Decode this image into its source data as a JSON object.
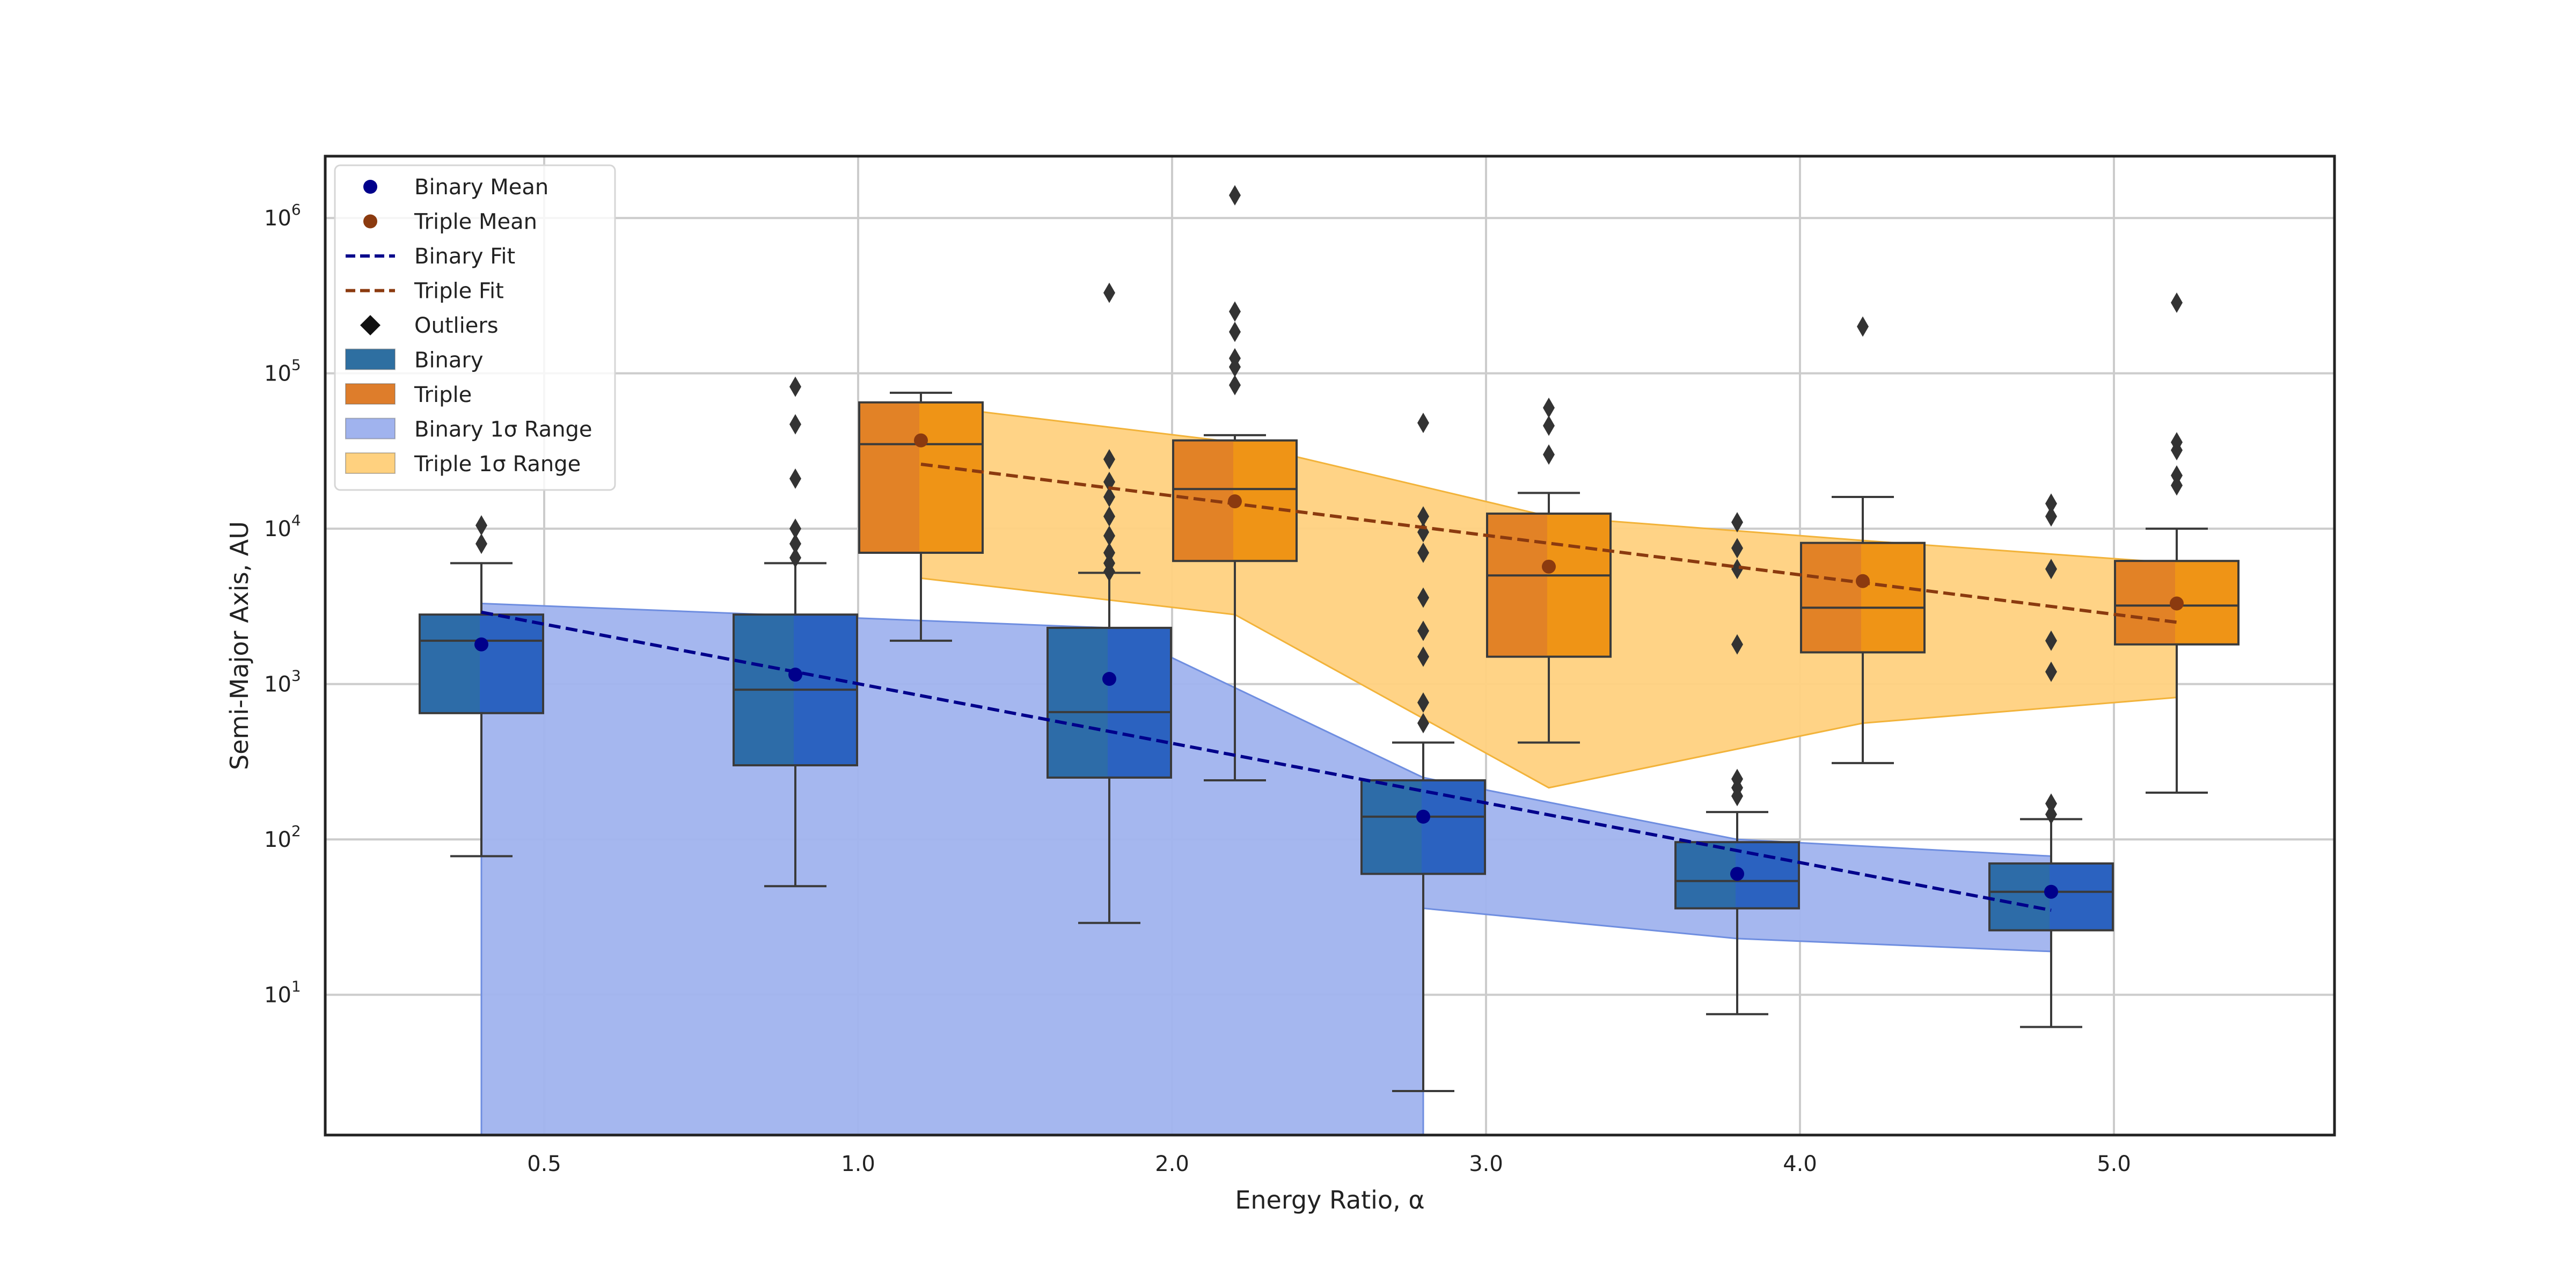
{
  "chart_data": {
    "type": "box",
    "title": "",
    "xlabel": "Energy Ratio, α",
    "ylabel": "Semi-Major Axis, AU",
    "yscale": "log",
    "ylim": [
      1.25,
      2500000
    ],
    "grid": true,
    "categories": [
      "0.5",
      "1.0",
      "2.0",
      "3.0",
      "4.0",
      "5.0"
    ],
    "y_ticks": [
      {
        "base": "10",
        "exp": "1",
        "value": 10
      },
      {
        "base": "10",
        "exp": "2",
        "value": 100
      },
      {
        "base": "10",
        "exp": "3",
        "value": 1000
      },
      {
        "base": "10",
        "exp": "4",
        "value": 10000
      },
      {
        "base": "10",
        "exp": "5",
        "value": 100000
      },
      {
        "base": "10",
        "exp": "6",
        "value": 1000000
      }
    ],
    "legend": {
      "placement": "top-left",
      "entries": [
        {
          "label": "Binary Mean",
          "kind": "dot",
          "color": "#00008b"
        },
        {
          "label": "Triple Mean",
          "kind": "dot",
          "color": "#8b3a0f"
        },
        {
          "label": "Binary Fit",
          "kind": "dash",
          "color": "#00008b"
        },
        {
          "label": "Triple Fit",
          "kind": "dash",
          "color": "#8b3a0f"
        },
        {
          "label": "Outliers",
          "kind": "diamond",
          "color": "#111111"
        },
        {
          "label": "Binary",
          "kind": "patch",
          "color": "#2e6fa1"
        },
        {
          "label": "Triple",
          "kind": "patch",
          "color": "#de7d2b"
        },
        {
          "label": "Binary 1σ Range",
          "kind": "patch",
          "color": "#a0b3ee"
        },
        {
          "label": "Triple 1σ Range",
          "kind": "patch",
          "color": "#ffd17f"
        }
      ]
    },
    "colors": {
      "binary_box": "#2b62c0",
      "binary_box_shade": "#2e6fa1",
      "triple_box": "#ef9416",
      "triple_box_shade": "#de7d2b",
      "binary_band": "#a0b3ee",
      "binary_band_edge": "#6f8ee0",
      "triple_band": "#ffd17f",
      "triple_band_edge": "#f2b33a",
      "binary_mean": "#00008b",
      "triple_mean": "#8b3a0f",
      "outlier": "#333333"
    },
    "series": [
      {
        "name": "Binary",
        "boxes": [
          {
            "category": "0.5",
            "offset": -0.2,
            "q1": 650,
            "median": 1900,
            "q3": 2800,
            "whisker_low": 78,
            "whisker_high": 6000,
            "mean": 1800,
            "outliers": [
              8000,
              10500
            ]
          },
          {
            "category": "1.0",
            "offset": -0.2,
            "q1": 300,
            "median": 920,
            "q3": 2800,
            "whisker_low": 50,
            "whisker_high": 6000,
            "mean": 1150,
            "outliers": [
              6500,
              8000,
              10000,
              21000,
              47000,
              82000
            ]
          },
          {
            "category": "2.0",
            "offset": -0.2,
            "q1": 250,
            "median": 660,
            "q3": 2300,
            "whisker_low": 29,
            "whisker_high": 5200,
            "mean": 1080,
            "outliers": [
              5300,
              6000,
              7000,
              9000,
              12000,
              16000,
              20000,
              28000,
              330000
            ]
          },
          {
            "category": "3.0",
            "offset": -0.2,
            "q1": 60,
            "median": 140,
            "q3": 240,
            "whisker_low": 2.4,
            "whisker_high": 420,
            "mean": 140,
            "outliers": [
              560,
              760,
              1500,
              2200,
              3600,
              7000,
              9500,
              12000,
              48000
            ]
          },
          {
            "category": "4.0",
            "offset": -0.2,
            "q1": 36,
            "median": 54,
            "q3": 96,
            "whisker_low": 7.5,
            "whisker_high": 150,
            "mean": 60,
            "outliers": [
              190,
              215,
              245,
              1800,
              5500,
              7500,
              11000
            ]
          },
          {
            "category": "5.0",
            "offset": -0.2,
            "q1": 26,
            "median": 46,
            "q3": 70,
            "whisker_low": 6.2,
            "whisker_high": 135,
            "mean": 46,
            "outliers": [
              145,
              170,
              1200,
              1900,
              5500,
              12000,
              14500
            ]
          }
        ]
      },
      {
        "name": "Triple",
        "boxes": [
          {
            "category": "1.0",
            "offset": 0.2,
            "q1": 7000,
            "median": 35000,
            "q3": 65000,
            "whisker_low": 1900,
            "whisker_high": 75000,
            "mean": 37000,
            "outliers": []
          },
          {
            "category": "2.0",
            "offset": 0.2,
            "q1": 6200,
            "median": 18000,
            "q3": 37000,
            "whisker_low": 240,
            "whisker_high": 40000,
            "mean": 15000,
            "outliers": [
              84000,
              110000,
              125000,
              185000,
              250000,
              1400000
            ]
          },
          {
            "category": "3.0",
            "offset": 0.2,
            "q1": 1500,
            "median": 5000,
            "q3": 12500,
            "whisker_low": 420,
            "whisker_high": 17000,
            "mean": 5700,
            "outliers": [
              30000,
              46000,
              60000
            ]
          },
          {
            "category": "4.0",
            "offset": 0.2,
            "q1": 1600,
            "median": 3100,
            "q3": 8100,
            "whisker_low": 310,
            "whisker_high": 16000,
            "mean": 4600,
            "outliers": [
              200000
            ]
          },
          {
            "category": "5.0",
            "offset": 0.2,
            "q1": 1800,
            "median": 3200,
            "q3": 6200,
            "whisker_low": 200,
            "whisker_high": 10000,
            "mean": 3300,
            "outliers": [
              19000,
              22000,
              32000,
              36000,
              285000
            ]
          }
        ]
      }
    ],
    "fits": [
      {
        "name": "Binary Fit",
        "points": [
          [
            -0.2,
            2900
          ],
          [
            4.8,
            35
          ]
        ]
      },
      {
        "name": "Triple Fit",
        "points": [
          [
            1.2,
            26000
          ],
          [
            5.2,
            2500
          ]
        ]
      }
    ],
    "bands": [
      {
        "name": "Binary 1σ Range",
        "upper": [
          [
            -0.2,
            3300
          ],
          [
            1.8,
            2300
          ],
          [
            2.8,
            250
          ],
          [
            3.8,
            100
          ],
          [
            4.8,
            78
          ]
        ],
        "lower": [
          [
            4.8,
            19
          ],
          [
            3.8,
            23
          ],
          [
            2.8,
            36
          ],
          [
            2.8,
            1.25
          ],
          [
            -0.2,
            1.25
          ]
        ]
      },
      {
        "name": "Triple 1σ Range",
        "upper": [
          [
            1.2,
            63000
          ],
          [
            2.2,
            36000
          ],
          [
            3.2,
            12000
          ],
          [
            4.2,
            8400
          ],
          [
            5.2,
            6000
          ]
        ],
        "lower": [
          [
            5.2,
            820
          ],
          [
            4.2,
            560
          ],
          [
            3.2,
            215
          ],
          [
            2.2,
            2800
          ],
          [
            1.2,
            4800
          ]
        ]
      }
    ]
  }
}
